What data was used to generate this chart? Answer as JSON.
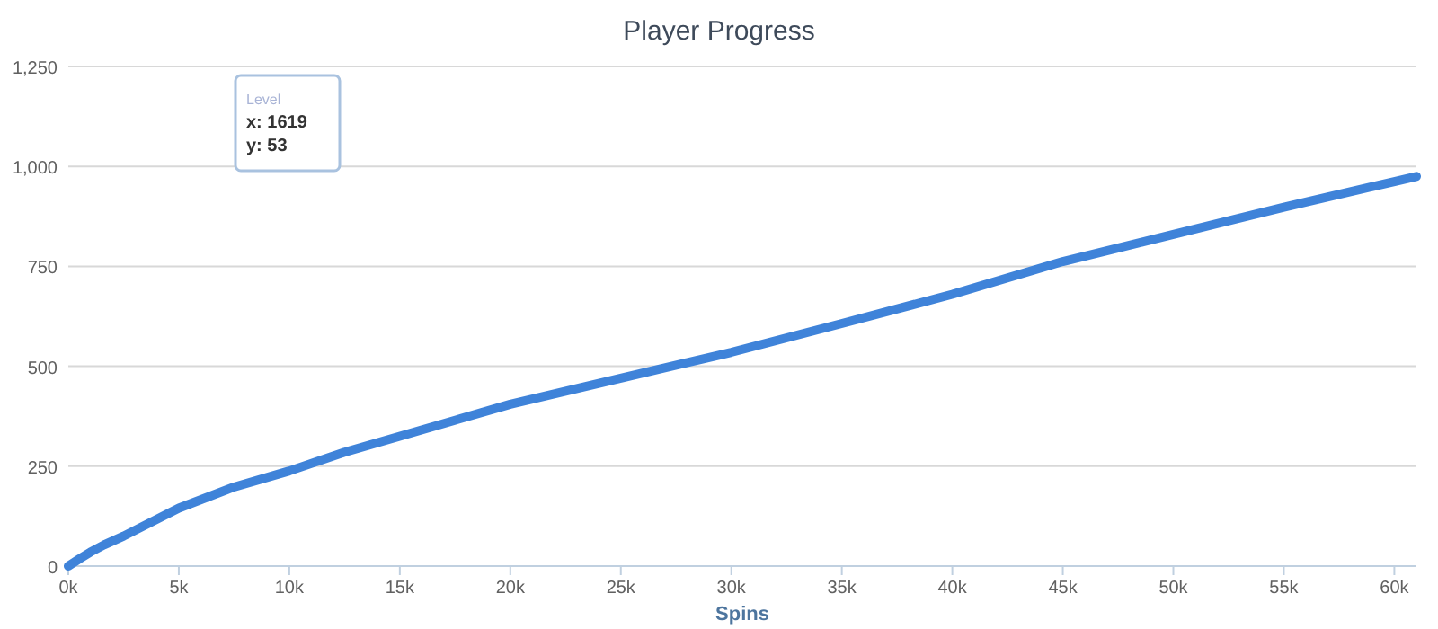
{
  "chart_data": {
    "type": "line",
    "title": "Player Progress",
    "xlabel": "Spins",
    "x": [
      0,
      500,
      1000,
      1619,
      2500,
      5000,
      7500,
      10000,
      12500,
      15000,
      20000,
      25000,
      30000,
      35000,
      40000,
      45000,
      50000,
      55000,
      60000,
      61000
    ],
    "series": [
      {
        "color": "#3f83d9",
        "values": [
          0,
          18,
          35,
          53,
          75,
          145,
          198,
          238,
          285,
          325,
          405,
          470,
          535,
          607,
          680,
          762,
          830,
          898,
          962,
          975
        ]
      }
    ],
    "xlim": [
      0,
      61000
    ],
    "xticks": [
      {
        "value": 0,
        "label": "0k"
      },
      {
        "value": 5000,
        "label": "5k"
      },
      {
        "value": 10000,
        "label": "10k"
      },
      {
        "value": 15000,
        "label": "15k"
      },
      {
        "value": 20000,
        "label": "20k"
      },
      {
        "value": 25000,
        "label": "25k"
      },
      {
        "value": 30000,
        "label": "30k"
      },
      {
        "value": 35000,
        "label": "35k"
      },
      {
        "value": 40000,
        "label": "40k"
      },
      {
        "value": 45000,
        "label": "45k"
      },
      {
        "value": 50000,
        "label": "50k"
      },
      {
        "value": 55000,
        "label": "55k"
      },
      {
        "value": 60000,
        "label": "60k"
      }
    ],
    "ylim": [
      0,
      1250
    ],
    "yticks": [
      0,
      250,
      500,
      750,
      {
        "value": 1000,
        "label": "1,000"
      },
      {
        "value": 1250,
        "label": "1,250"
      }
    ],
    "grid": "y",
    "marker": "none",
    "line_style": "solid",
    "annotations": [
      "Level\nx: 1619\ny: 53"
    ]
  }
}
